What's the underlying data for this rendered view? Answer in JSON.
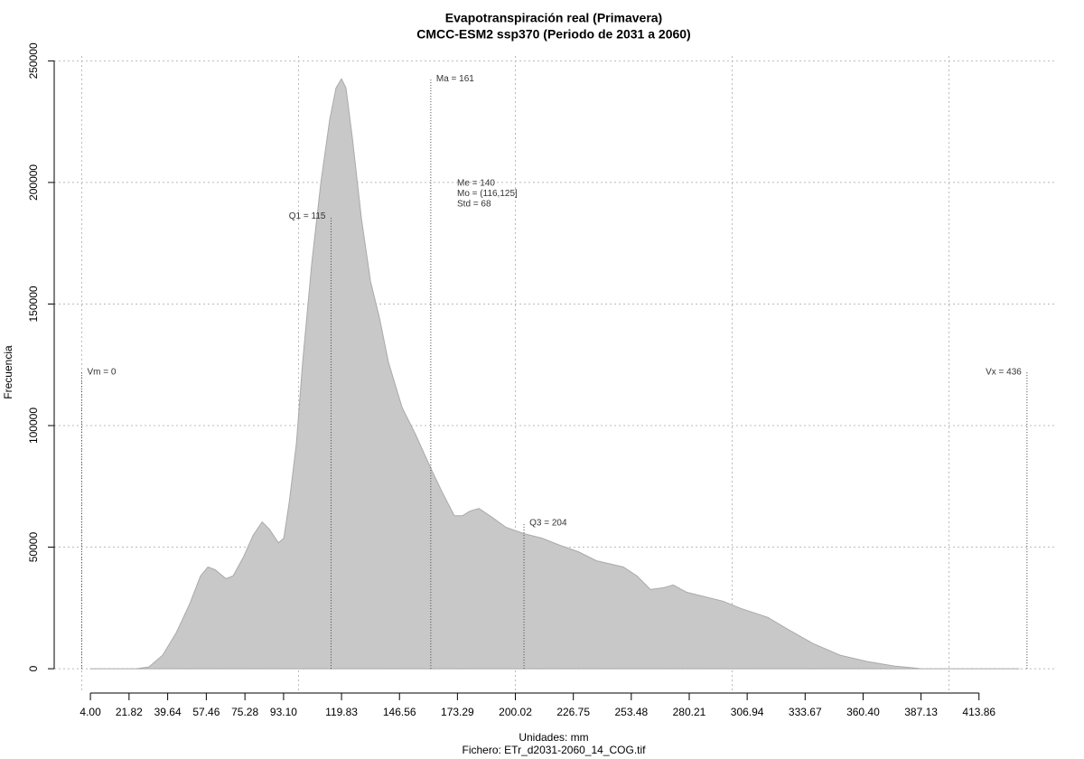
{
  "chart_data": {
    "type": "area",
    "title": "Evapotranspiración real (Primavera)",
    "subtitle": "CMCC-ESM2 ssp370 (Periodo de 2031 a 2060)",
    "xlabel": "Unidades: mm",
    "caption": "Fichero: ETr_d2031-2060_14_COG.tif",
    "ylabel": "Frecuencia",
    "color": "#c8c8c8",
    "x": [
      4,
      25,
      31,
      37.3,
      43.6,
      49.8,
      54.8,
      58.2,
      61.5,
      66.5,
      69.8,
      74.8,
      79,
      83.2,
      86.5,
      90.7,
      93.2,
      95.7,
      99,
      101.9,
      106.1,
      110.3,
      114.4,
      117.3,
      119.8,
      121.9,
      124.8,
      129,
      133.2,
      137.3,
      141.5,
      147.8,
      154,
      161.5,
      166.5,
      171.9,
      175.7,
      179,
      183.2,
      189.4,
      195.7,
      204,
      212.3,
      220.7,
      229,
      237.3,
      249.8,
      256.1,
      262.3,
      268.6,
      272.8,
      279,
      287.3,
      295.7,
      304,
      316.5,
      324.8,
      337.3,
      349.8,
      362.3,
      374.8,
      387.3,
      432.3
    ],
    "y": [
      0,
      0,
      740,
      5556,
      14815,
      26667,
      38148,
      41852,
      40741,
      37037,
      38148,
      46296,
      54815,
      60370,
      57407,
      51852,
      53704,
      68519,
      92593,
      125926,
      166667,
      200000,
      225926,
      238889,
      242593,
      238889,
      218519,
      185185,
      159259,
      144444,
      125926,
      107407,
      96296,
      81481,
      72222,
      62963,
      62963,
      64815,
      65926,
      62222,
      58148,
      55556,
      53704,
      50741,
      48148,
      44444,
      41852,
      38148,
      32593,
      33333,
      34444,
      31481,
      29630,
      27778,
      24815,
      21111,
      16667,
      10370,
      5556,
      2963,
      1111,
      0,
      0
    ],
    "xlim": [
      -12.7,
      449.8
    ],
    "ylim": [
      -10000,
      252000
    ],
    "xticks": [
      {
        "value": 4,
        "label": "4.00"
      },
      21.82,
      39.64,
      57.46,
      75.28,
      {
        "value": 93.1,
        "label": "93.10"
      },
      119.83,
      146.56,
      173.29,
      200.02,
      226.75,
      253.48,
      280.21,
      306.94,
      333.67,
      {
        "value": 360.4,
        "label": "360.40"
      },
      387.13,
      413.86
    ],
    "yticks": [
      0,
      50000,
      100000,
      150000,
      200000,
      250000
    ],
    "xgrid": [
      0,
      100,
      200,
      300,
      400
    ],
    "grid": true,
    "annotations": [
      {
        "label": "Vm = 0",
        "x": 0,
        "y": 122000,
        "side": "right"
      },
      {
        "label": "Q1 = 115",
        "x": 115,
        "y": 186000,
        "side": "left"
      },
      {
        "label": "Ma = 161",
        "x": 161,
        "y": 242500,
        "side": "right"
      },
      {
        "label": "Q3 = 204",
        "x": 204,
        "y": 60000,
        "side": "right"
      },
      {
        "label": "Vx = 436",
        "x": 436,
        "y": 122000,
        "side": "left"
      }
    ],
    "stats": [
      "Me = 140",
      "Mo = (116,125]",
      "Std = 68"
    ]
  }
}
